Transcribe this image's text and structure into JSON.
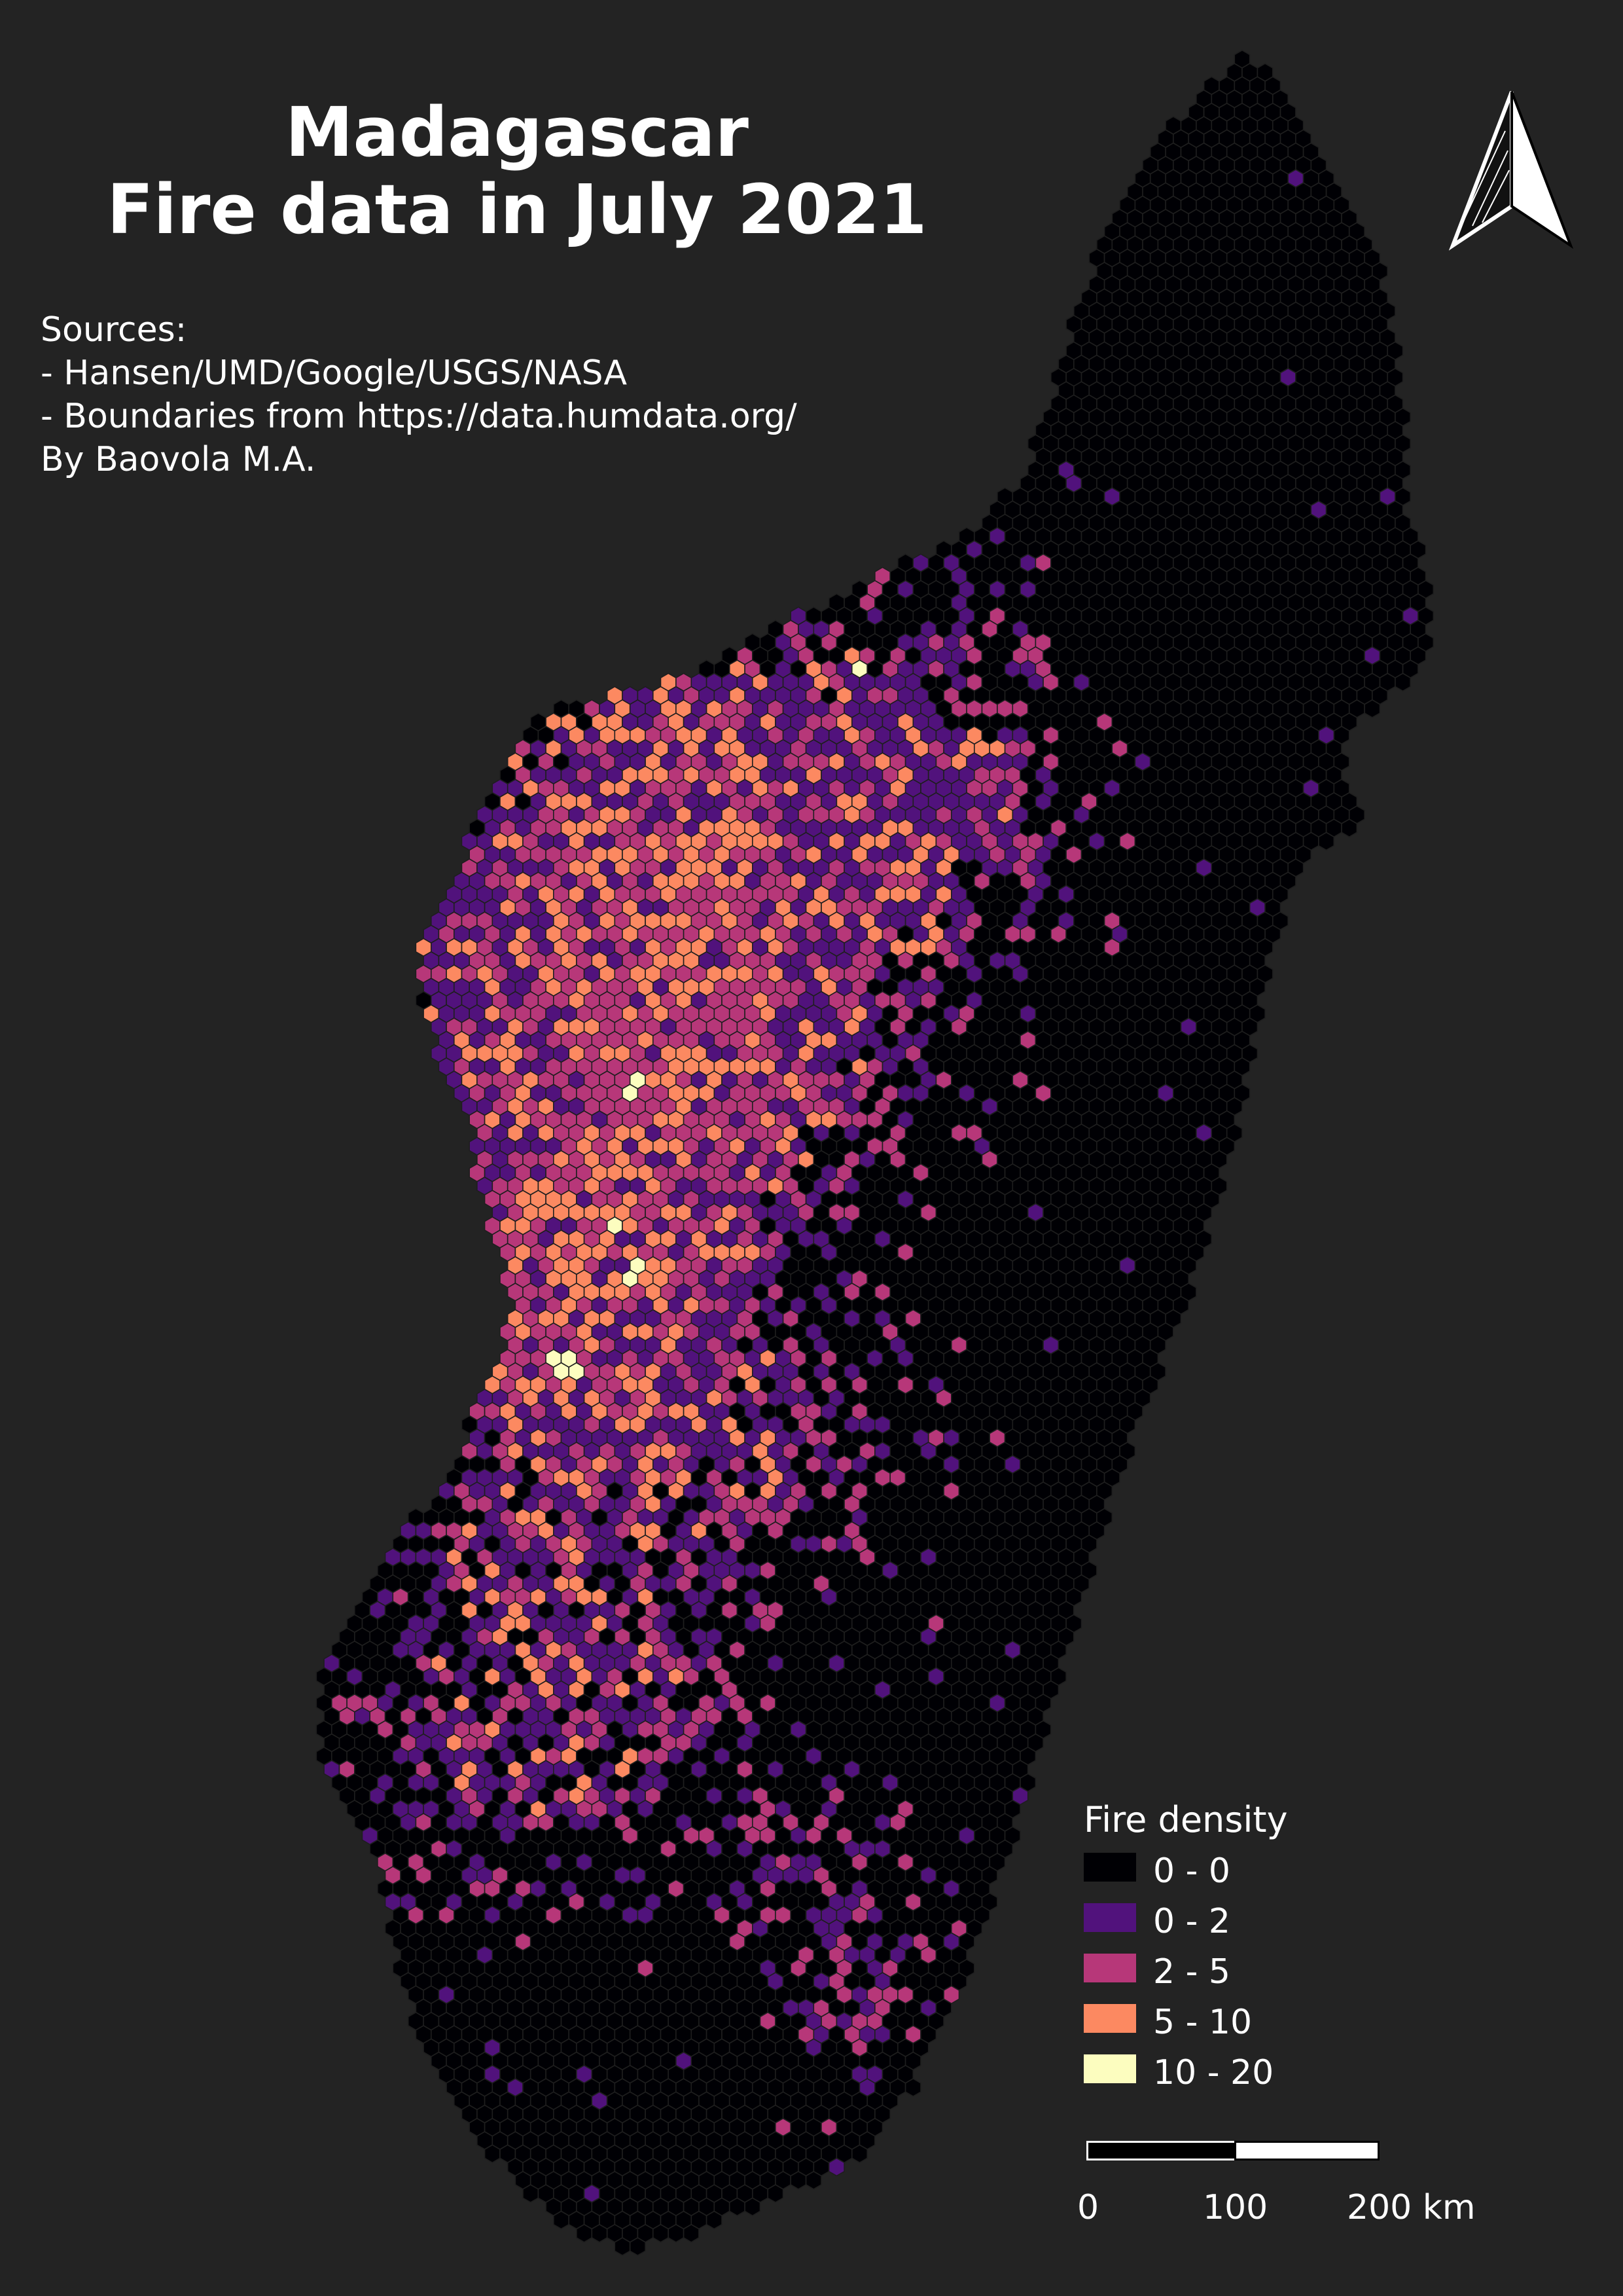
{
  "title": {
    "line1": "Madagascar",
    "line2": "Fire data in July 2021"
  },
  "sources": {
    "heading": "Sources:",
    "line1": "- Hansen/UMD/Google/USGS/NASA",
    "line2": "- Boundaries from https://data.humdata.org/",
    "author": "By Baovola M.A."
  },
  "legend": {
    "title": "Fire density",
    "classes": [
      {
        "label": "0 - 0",
        "color": "#000004"
      },
      {
        "label": "0 - 2",
        "color": "#51127c"
      },
      {
        "label": "2 - 5",
        "color": "#b73779"
      },
      {
        "label": "5 - 10",
        "color": "#fc8961"
      },
      {
        "label": "10 - 20",
        "color": "#fcfdbf"
      }
    ]
  },
  "scale_bar": {
    "labels": [
      "0",
      "100",
      "200 km"
    ]
  },
  "north_arrow": {
    "icon": "north-arrow-icon"
  },
  "colors": {
    "background": "#232323",
    "land_hex_border": "#1e1e1e"
  }
}
